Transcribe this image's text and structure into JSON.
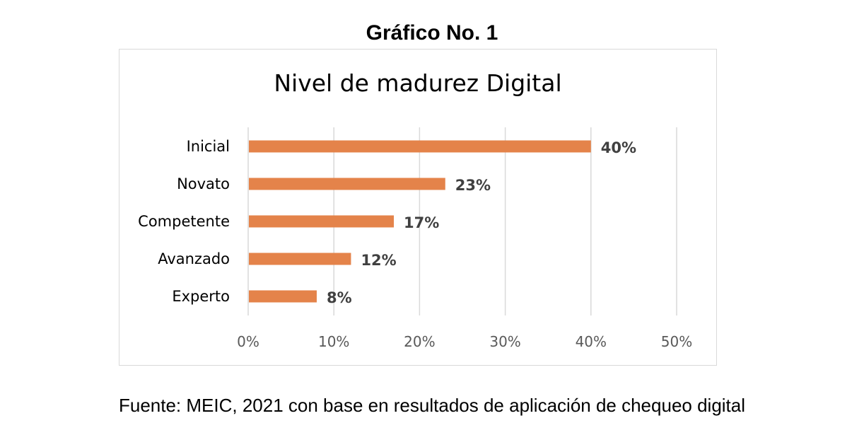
{
  "figure_title": "Gráfico No. 1",
  "source_note": "Fuente: MEIC, 2021 con base en resultados de aplicación de chequeo digital",
  "colors": {
    "bar": "#E4834A",
    "grid": "#d9d9d9",
    "category_text": "#000000",
    "data_label": "#404040",
    "tick_text": "#595959"
  },
  "chart_data": {
    "type": "bar",
    "orientation": "horizontal",
    "title": "Nivel de madurez Digital",
    "xlabel": "",
    "ylabel": "",
    "categories": [
      "Inicial",
      "Novato",
      "Competente",
      "Avanzado",
      "Experto"
    ],
    "values": [
      40,
      23,
      17,
      12,
      8
    ],
    "data_labels": [
      "40%",
      "23%",
      "17%",
      "12%",
      "8%"
    ],
    "xlim": [
      0,
      50
    ],
    "x_ticks": [
      0,
      10,
      20,
      30,
      40,
      50
    ],
    "x_tick_labels": [
      "0%",
      "10%",
      "20%",
      "30%",
      "40%",
      "50%"
    ],
    "grid": true,
    "legend": "none"
  }
}
